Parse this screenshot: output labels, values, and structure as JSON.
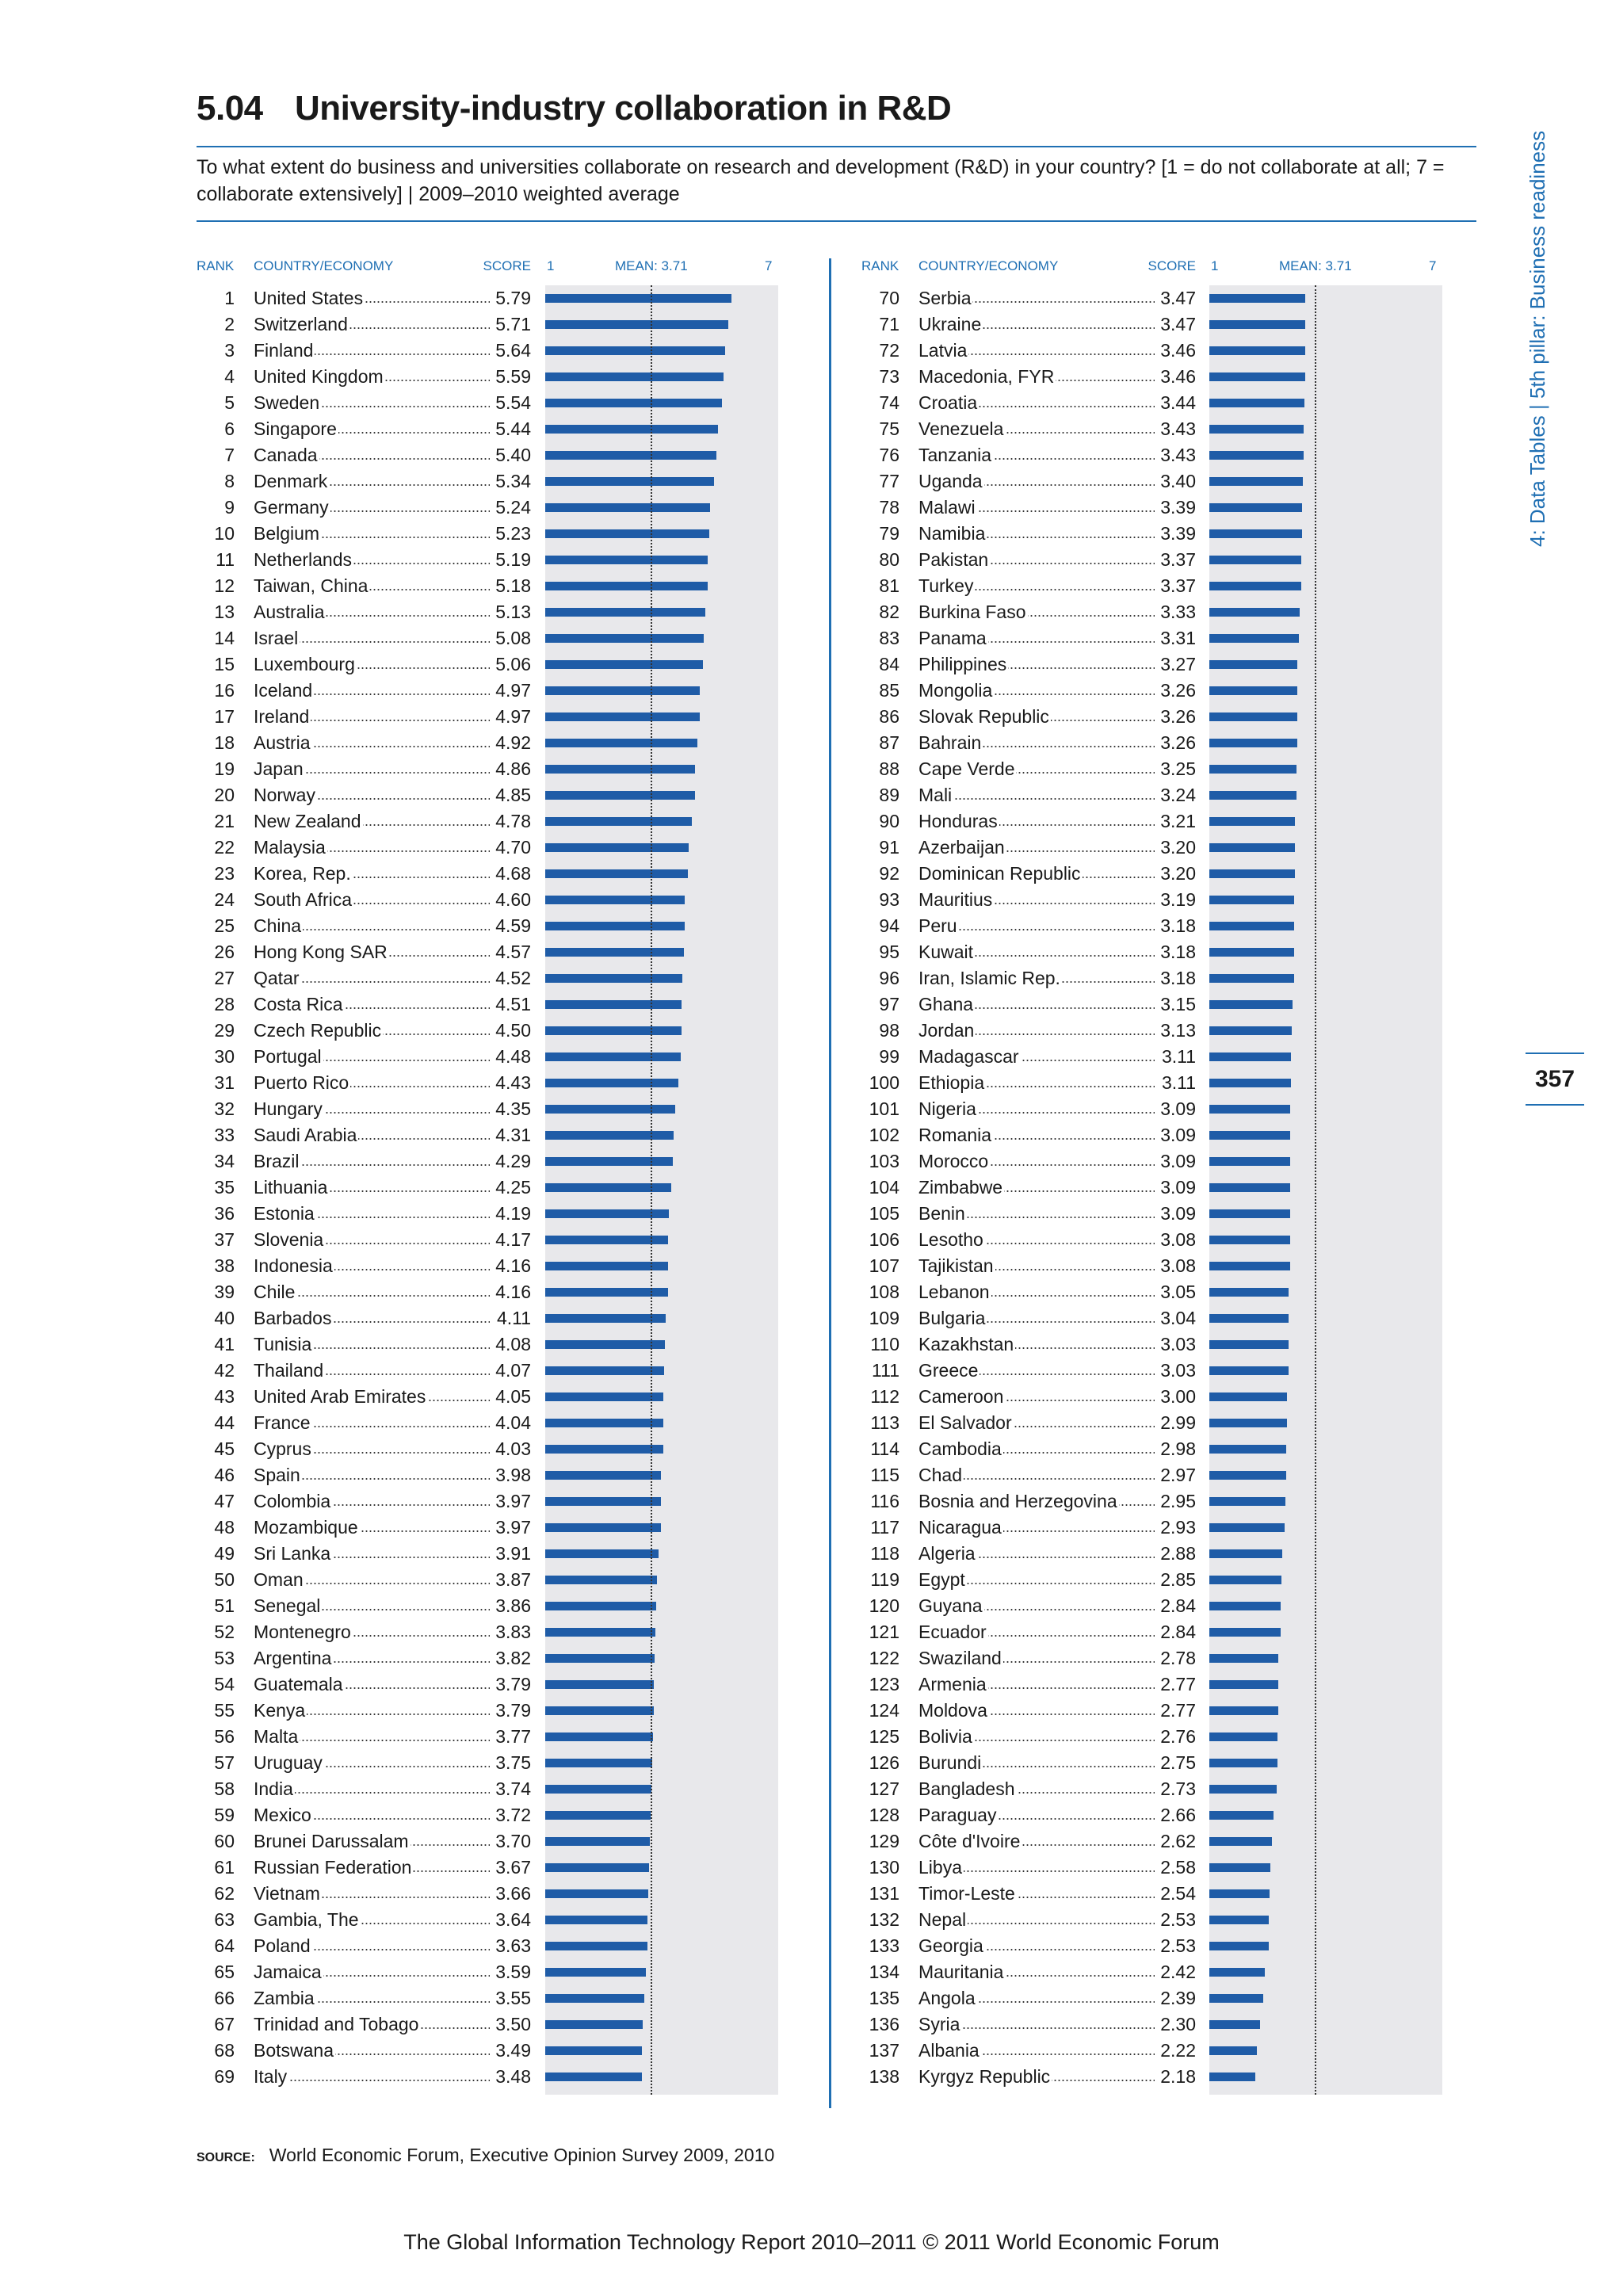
{
  "header": {
    "number": "5.04",
    "title": "University-industry collaboration in R&D",
    "question": "To what extent do business and universities collaborate on research and development (R&D) in your country? [1 = do not collaborate at all; 7 = collaborate extensively] | 2009–2010 weighted average",
    "side_label": "4: Data Tables | 5th pillar: Business readiness",
    "page_number": "357"
  },
  "columns": {
    "rank": "RANK",
    "country": "COUNTRY/ECONOMY",
    "score": "SCORE",
    "scale_min": "1",
    "mean_label": "MEAN: 3.71",
    "scale_max": "7"
  },
  "chart_data": {
    "type": "bar",
    "title": "University-industry collaboration in R&D",
    "xlim": [
      1,
      7
    ],
    "mean": 3.71,
    "ranks": [
      1,
      2,
      3,
      4,
      5,
      6,
      7,
      8,
      9,
      10,
      11,
      12,
      13,
      14,
      15,
      16,
      17,
      18,
      19,
      20,
      21,
      22,
      23,
      24,
      25,
      26,
      27,
      28,
      29,
      30,
      31,
      32,
      33,
      34,
      35,
      36,
      37,
      38,
      39,
      40,
      41,
      42,
      43,
      44,
      45,
      46,
      47,
      48,
      49,
      50,
      51,
      52,
      53,
      54,
      55,
      56,
      57,
      58,
      59,
      60,
      61,
      62,
      63,
      64,
      65,
      66,
      67,
      68,
      69,
      70,
      71,
      72,
      73,
      74,
      75,
      76,
      77,
      78,
      79,
      80,
      81,
      82,
      83,
      84,
      85,
      86,
      87,
      88,
      89,
      90,
      91,
      92,
      93,
      94,
      95,
      96,
      97,
      98,
      99,
      100,
      101,
      102,
      103,
      104,
      105,
      106,
      107,
      108,
      109,
      110,
      111,
      112,
      113,
      114,
      115,
      116,
      117,
      118,
      119,
      120,
      121,
      122,
      123,
      124,
      125,
      126,
      127,
      128,
      129,
      130,
      131,
      132,
      133,
      134,
      135,
      136,
      137,
      138
    ],
    "categories": [
      "United States",
      "Switzerland",
      "Finland",
      "United Kingdom",
      "Sweden",
      "Singapore",
      "Canada",
      "Denmark",
      "Germany",
      "Belgium",
      "Netherlands",
      "Taiwan, China",
      "Australia",
      "Israel",
      "Luxembourg",
      "Iceland",
      "Ireland",
      "Austria",
      "Japan",
      "Norway",
      "New Zealand",
      "Malaysia",
      "Korea, Rep.",
      "South Africa",
      "China",
      "Hong Kong SAR",
      "Qatar",
      "Costa Rica",
      "Czech Republic",
      "Portugal",
      "Puerto Rico",
      "Hungary",
      "Saudi Arabia",
      "Brazil",
      "Lithuania",
      "Estonia",
      "Slovenia",
      "Indonesia",
      "Chile",
      "Barbados",
      "Tunisia",
      "Thailand",
      "United Arab Emirates",
      "France",
      "Cyprus",
      "Spain",
      "Colombia",
      "Mozambique",
      "Sri Lanka",
      "Oman",
      "Senegal",
      "Montenegro",
      "Argentina",
      "Guatemala",
      "Kenya",
      "Malta",
      "Uruguay",
      "India",
      "Mexico",
      "Brunei Darussalam",
      "Russian Federation",
      "Vietnam",
      "Gambia, The",
      "Poland",
      "Jamaica",
      "Zambia",
      "Trinidad and Tobago",
      "Botswana",
      "Italy",
      "Serbia",
      "Ukraine",
      "Latvia",
      "Macedonia, FYR",
      "Croatia",
      "Venezuela",
      "Tanzania",
      "Uganda",
      "Malawi",
      "Namibia",
      "Pakistan",
      "Turkey",
      "Burkina Faso",
      "Panama",
      "Philippines",
      "Mongolia",
      "Slovak Republic",
      "Bahrain",
      "Cape Verde",
      "Mali",
      "Honduras",
      "Azerbaijan",
      "Dominican Republic",
      "Mauritius",
      "Peru",
      "Kuwait",
      "Iran, Islamic Rep.",
      "Ghana",
      "Jordan",
      "Madagascar",
      "Ethiopia",
      "Nigeria",
      "Romania",
      "Morocco",
      "Zimbabwe",
      "Benin",
      "Lesotho",
      "Tajikistan",
      "Lebanon",
      "Bulgaria",
      "Kazakhstan",
      "Greece",
      "Cameroon",
      "El Salvador",
      "Cambodia",
      "Chad",
      "Bosnia and Herzegovina",
      "Nicaragua",
      "Algeria",
      "Egypt",
      "Guyana",
      "Ecuador",
      "Swaziland",
      "Armenia",
      "Moldova",
      "Bolivia",
      "Burundi",
      "Bangladesh",
      "Paraguay",
      "Côte d'Ivoire",
      "Libya",
      "Timor-Leste",
      "Nepal",
      "Georgia",
      "Mauritania",
      "Angola",
      "Syria",
      "Albania",
      "Kyrgyz Republic"
    ],
    "values": [
      5.79,
      5.71,
      5.64,
      5.59,
      5.54,
      5.44,
      5.4,
      5.34,
      5.24,
      5.23,
      5.19,
      5.18,
      5.13,
      5.08,
      5.06,
      4.97,
      4.97,
      4.92,
      4.86,
      4.85,
      4.78,
      4.7,
      4.68,
      4.6,
      4.59,
      4.57,
      4.52,
      4.51,
      4.5,
      4.48,
      4.43,
      4.35,
      4.31,
      4.29,
      4.25,
      4.19,
      4.17,
      4.16,
      4.16,
      4.11,
      4.08,
      4.07,
      4.05,
      4.04,
      4.03,
      3.98,
      3.97,
      3.97,
      3.91,
      3.87,
      3.86,
      3.83,
      3.82,
      3.79,
      3.79,
      3.77,
      3.75,
      3.74,
      3.72,
      3.7,
      3.67,
      3.66,
      3.64,
      3.63,
      3.59,
      3.55,
      3.5,
      3.49,
      3.48,
      3.47,
      3.47,
      3.46,
      3.46,
      3.44,
      3.43,
      3.43,
      3.4,
      3.39,
      3.39,
      3.37,
      3.37,
      3.33,
      3.31,
      3.27,
      3.26,
      3.26,
      3.26,
      3.25,
      3.24,
      3.21,
      3.2,
      3.2,
      3.19,
      3.18,
      3.18,
      3.18,
      3.15,
      3.13,
      3.11,
      3.11,
      3.09,
      3.09,
      3.09,
      3.09,
      3.09,
      3.08,
      3.08,
      3.05,
      3.04,
      3.03,
      3.03,
      3.0,
      2.99,
      2.98,
      2.97,
      2.95,
      2.93,
      2.88,
      2.85,
      2.84,
      2.84,
      2.78,
      2.77,
      2.77,
      2.76,
      2.75,
      2.73,
      2.66,
      2.62,
      2.58,
      2.54,
      2.53,
      2.53,
      2.42,
      2.39,
      2.3,
      2.22,
      2.18
    ],
    "colors": {
      "bar": "#1f5ca7",
      "panel": "#e8e8eb",
      "accent": "#1f6fb3"
    }
  },
  "source": {
    "label": "SOURCE:",
    "text": "World Economic Forum, Executive Opinion Survey 2009, 2010"
  },
  "footer": "The Global Information Technology Report 2010–2011 © 2011 World Economic Forum"
}
